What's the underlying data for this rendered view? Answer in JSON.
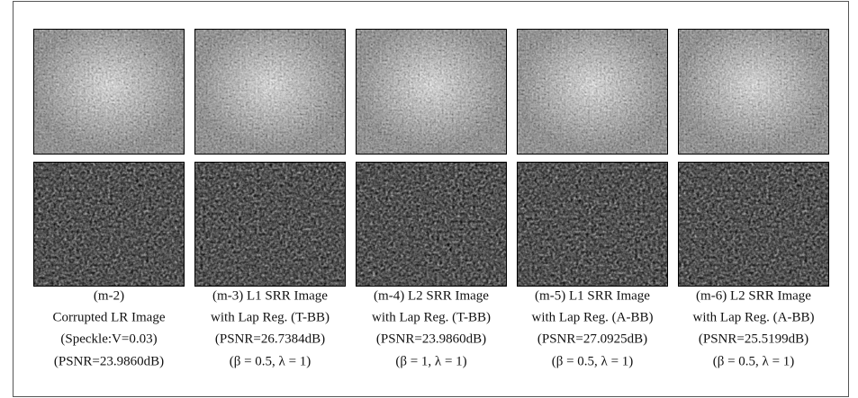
{
  "panels": [
    {
      "caption": [
        "(m-2)",
        "Corrupted LR Image",
        "(Speckle:V=0.03)",
        "(PSNR=23.9860dB)"
      ]
    },
    {
      "caption": [
        "(m-3) L1 SRR Image",
        "with Lap Reg. (T-BB)",
        "(PSNR=26.7384dB)",
        "(β = 0.5, λ = 1)"
      ]
    },
    {
      "caption": [
        "(m-4) L2 SRR Image",
        "with Lap Reg. (T-BB)",
        "(PSNR=23.9860dB)",
        "(β = 1, λ = 1)"
      ]
    },
    {
      "caption": [
        "(m-5) L1 SRR Image",
        "with Lap Reg. (A-BB)",
        "(PSNR=27.0925dB)",
        "(β = 0.5, λ = 1)"
      ]
    },
    {
      "caption": [
        "(m-6) L2 SRR Image",
        "with Lap Reg. (A-BB)",
        "(PSNR=25.5199dB)",
        "(β = 0.5, λ = 1)"
      ]
    }
  ]
}
